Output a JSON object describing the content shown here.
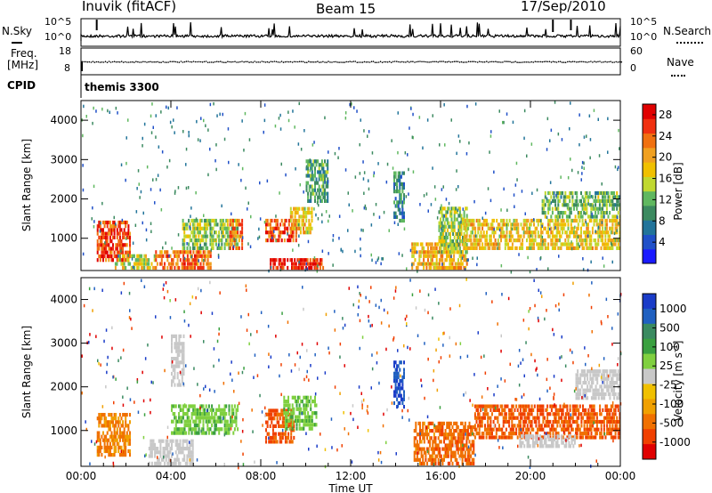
{
  "header": {
    "station": "Inuvik (fitACF)",
    "beam": "Beam 15",
    "date": "17/Sep/2010"
  },
  "noise_panel": {
    "left_label": "N.Sky",
    "right_label": "N.Search",
    "left_ticks": [
      "10^5",
      "10^0"
    ],
    "right_ticks": [
      "10^5",
      "10^0"
    ]
  },
  "freq_panel": {
    "left_label_line1": "Freq.",
    "left_label_line2": "[MHz]",
    "right_label": "Nave",
    "left_ticks": [
      "18",
      "8"
    ],
    "right_ticks": [
      "60",
      "0"
    ]
  },
  "cpid_panel": {
    "label": "CPID",
    "value": "themis 3300"
  },
  "colors": {
    "power_scale": [
      "#1a1aff",
      "#2050c8",
      "#22749a",
      "#3c8a60",
      "#60b860",
      "#c0d830",
      "#f0c000",
      "#f0a020",
      "#f07010",
      "#f03010",
      "#e00000"
    ],
    "velocity_scale": [
      "#1a3cc8",
      "#2060c0",
      "#3a8a60",
      "#3aa040",
      "#80d040",
      "#c8c8c8",
      "#f0c000",
      "#f0a000",
      "#f07000",
      "#f04000",
      "#e00000"
    ]
  },
  "chart_data": [
    {
      "type": "heatmap",
      "title": "Power [dB]",
      "ylabel": "Slant Range [km]",
      "xlabel": "",
      "xlim": [
        "00:00",
        "24:00"
      ],
      "ylim": [
        180,
        4500
      ],
      "y_ticks": [
        "1000",
        "2000",
        "3000",
        "4000"
      ],
      "colorbar_label": "Power [dB]",
      "colorbar_ticks": [
        "4",
        "8",
        "12",
        "16",
        "20",
        "24",
        "28"
      ],
      "colorbar_range": [
        0,
        30
      ],
      "regions": [
        {
          "t0": 0.7,
          "t1": 2.2,
          "r0": 400,
          "r1": 1450,
          "v": 26
        },
        {
          "t0": 1.5,
          "t1": 3.3,
          "r0": 200,
          "r1": 600,
          "v": 16
        },
        {
          "t0": 3.3,
          "t1": 5.8,
          "r0": 200,
          "r1": 700,
          "v": 24
        },
        {
          "t0": 4.5,
          "t1": 7.0,
          "r0": 700,
          "r1": 1500,
          "v": 14
        },
        {
          "t0": 6.6,
          "t1": 7.2,
          "r0": 700,
          "r1": 1500,
          "v": 24
        },
        {
          "t0": 8.2,
          "t1": 9.6,
          "r0": 900,
          "r1": 1500,
          "v": 26
        },
        {
          "t0": 8.4,
          "t1": 10.8,
          "r0": 200,
          "r1": 500,
          "v": 28
        },
        {
          "t0": 9.3,
          "t1": 10.3,
          "r0": 1100,
          "r1": 1800,
          "v": 18
        },
        {
          "t0": 10.0,
          "t1": 11.0,
          "r0": 1900,
          "r1": 3000,
          "v": 10
        },
        {
          "t0": 14.7,
          "t1": 17.2,
          "r0": 200,
          "r1": 900,
          "v": 20
        },
        {
          "t0": 13.9,
          "t1": 14.4,
          "r0": 1400,
          "r1": 2700,
          "v": 8
        },
        {
          "t0": 15.9,
          "t1": 17.2,
          "r0": 600,
          "r1": 1800,
          "v": 14
        },
        {
          "t0": 17.0,
          "t1": 24.0,
          "r0": 700,
          "r1": 1500,
          "v": 18
        },
        {
          "t0": 20.5,
          "t1": 24.0,
          "r0": 1500,
          "r1": 2200,
          "v": 12
        }
      ]
    },
    {
      "type": "heatmap",
      "title": "Velocity [m s^-1]",
      "ylabel": "Slant Range [km]",
      "xlabel": "Time UT",
      "xlim": [
        "00:00",
        "24:00"
      ],
      "ylim": [
        180,
        4500
      ],
      "y_ticks": [
        "1000",
        "2000",
        "3000",
        "4000"
      ],
      "x_ticks": [
        "00:00",
        "04:00",
        "08:00",
        "12:00",
        "16:00",
        "20:00",
        "00:00"
      ],
      "colorbar_label": "Velocity [m s^-1]",
      "colorbar_ticks": [
        "1000",
        "500",
        "100",
        "25",
        "-25",
        "-100",
        "-500",
        "-1000"
      ],
      "regions": [
        {
          "t0": 0.7,
          "t1": 2.2,
          "r0": 400,
          "r1": 1400,
          "v": -200
        },
        {
          "t0": 3.0,
          "t1": 5.0,
          "r0": 200,
          "r1": 800,
          "v": 10
        },
        {
          "t0": 4.0,
          "t1": 7.0,
          "r0": 900,
          "r1": 1600,
          "v": 60
        },
        {
          "t0": 8.2,
          "t1": 9.5,
          "r0": 700,
          "r1": 1500,
          "v": -400
        },
        {
          "t0": 9.0,
          "t1": 10.5,
          "r0": 1000,
          "r1": 1800,
          "v": 60
        },
        {
          "t0": 4.0,
          "t1": 4.6,
          "r0": 2000,
          "r1": 3200,
          "v": 0
        },
        {
          "t0": 13.9,
          "t1": 14.4,
          "r0": 1500,
          "r1": 2600,
          "v": 700
        },
        {
          "t0": 14.8,
          "t1": 17.5,
          "r0": 200,
          "r1": 1200,
          "v": -300
        },
        {
          "t0": 17.5,
          "t1": 24.0,
          "r0": 800,
          "r1": 1600,
          "v": -400
        },
        {
          "t0": 19.5,
          "t1": 22.0,
          "r0": 600,
          "r1": 900,
          "v": 0
        },
        {
          "t0": 22.0,
          "t1": 24.0,
          "r0": 1700,
          "r1": 2400,
          "v": 0
        }
      ]
    }
  ]
}
